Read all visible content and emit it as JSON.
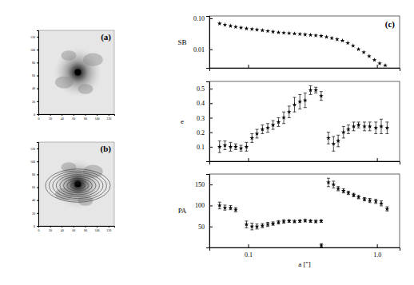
{
  "chart_data": [
    {
      "type": "image",
      "title": "(a)",
      "xlim": [
        0,
        130
      ],
      "ylim": [
        0,
        130
      ],
      "xticks": [
        0,
        20,
        40,
        60,
        80,
        100,
        120
      ],
      "yticks": [
        0,
        20,
        40,
        60,
        80,
        100,
        120
      ]
    },
    {
      "type": "image",
      "title": "(b)",
      "xlim": [
        0,
        130
      ],
      "ylim": [
        0,
        130
      ],
      "xticks": [
        0,
        20,
        40,
        60,
        80,
        100,
        120
      ],
      "yticks": [
        0,
        20,
        40,
        60,
        80,
        100,
        120
      ]
    },
    {
      "type": "scatter",
      "title": "(c)",
      "ylabel": "SB",
      "log": true,
      "marker": "star",
      "tick_labels": "y",
      "x": [
        0.06,
        0.066,
        0.073,
        0.08,
        0.088,
        0.097,
        0.107,
        0.117,
        0.129,
        0.142,
        0.156,
        0.172,
        0.189,
        0.208,
        0.229,
        0.252,
        0.277,
        0.305,
        0.335,
        0.369,
        0.406,
        0.446,
        0.491,
        0.54,
        0.594,
        0.653,
        0.719,
        0.79,
        0.87,
        0.957,
        1.05,
        1.16
      ],
      "values": [
        0.068,
        0.062,
        0.057,
        0.053,
        0.05,
        0.047,
        0.045,
        0.043,
        0.041,
        0.039,
        0.037,
        0.035,
        0.034,
        0.033,
        0.032,
        0.031,
        0.03,
        0.029,
        0.028,
        0.027,
        0.025,
        0.023,
        0.021,
        0.019,
        0.016,
        0.013,
        0.01,
        0.008,
        0.006,
        0.0045,
        0.0035,
        0.003
      ],
      "xlim": [
        0.05,
        1.5
      ],
      "ylim": [
        0.0025,
        0.12
      ],
      "xticks": [
        0.1,
        {
          "value": 1,
          "label": "1.0"
        }
      ],
      "yticks": [
        {
          "value": 0.01,
          "label": "0.01"
        },
        {
          "value": 0.1,
          "label": "0.10"
        }
      ]
    },
    {
      "type": "scatter",
      "ylabel": "e",
      "log": "x",
      "marker": "star",
      "tick_labels": "y",
      "x": [
        0.06,
        0.066,
        0.073,
        0.08,
        0.088,
        0.097,
        0.107,
        0.117,
        0.129,
        0.142,
        0.156,
        0.172,
        0.189,
        0.208,
        0.229,
        0.252,
        0.277,
        0.305,
        0.335,
        0.369,
        0.42,
        0.46,
        0.5,
        0.55,
        0.6,
        0.66,
        0.72,
        0.8,
        0.88,
        0.98,
        1.08,
        1.2
      ],
      "values": [
        0.1,
        0.11,
        0.1,
        0.1,
        0.09,
        0.1,
        0.16,
        0.19,
        0.22,
        0.23,
        0.25,
        0.27,
        0.3,
        0.34,
        0.39,
        0.41,
        0.42,
        0.49,
        0.49,
        0.45,
        0.16,
        0.12,
        0.14,
        0.2,
        0.22,
        0.24,
        0.25,
        0.24,
        0.24,
        0.23,
        0.24,
        0.23
      ],
      "errors": [
        0.04,
        0.03,
        0.03,
        0.02,
        0.02,
        0.03,
        0.03,
        0.03,
        0.03,
        0.03,
        0.03,
        0.03,
        0.04,
        0.04,
        0.05,
        0.05,
        0.05,
        0.03,
        0.02,
        0.03,
        0.04,
        0.05,
        0.04,
        0.04,
        0.03,
        0.03,
        0.02,
        0.03,
        0.03,
        0.04,
        0.05,
        0.04
      ],
      "xlim": [
        0.05,
        1.5
      ],
      "ylim": [
        0,
        0.55
      ],
      "xticks": [
        0.1,
        {
          "value": 1,
          "label": "1.0"
        }
      ],
      "yticks": [
        0.1,
        0.2,
        0.3,
        0.4,
        0.5
      ]
    },
    {
      "type": "scatter",
      "ylabel": "PA",
      "xlabel": "a ['']",
      "log": "x",
      "marker": "star",
      "x": [
        0.06,
        0.066,
        0.073,
        0.08,
        0.097,
        0.107,
        0.117,
        0.129,
        0.142,
        0.156,
        0.172,
        0.189,
        0.208,
        0.229,
        0.252,
        0.277,
        0.305,
        0.335,
        0.369,
        0.37,
        0.42,
        0.46,
        0.5,
        0.55,
        0.6,
        0.66,
        0.72,
        0.8,
        0.88,
        0.98,
        1.08,
        1.2
      ],
      "values": [
        100,
        95,
        95,
        90,
        55,
        50,
        50,
        52,
        55,
        57,
        60,
        62,
        63,
        62,
        63,
        64,
        63,
        62,
        63,
        5,
        155,
        150,
        140,
        135,
        130,
        125,
        120,
        115,
        112,
        110,
        105,
        92
      ],
      "errors": [
        8,
        6,
        5,
        5,
        8,
        8,
        6,
        5,
        5,
        4,
        4,
        4,
        3,
        3,
        3,
        3,
        3,
        3,
        3,
        4,
        10,
        8,
        5,
        5,
        4,
        4,
        4,
        4,
        5,
        5,
        6,
        5
      ],
      "xlim": [
        0.05,
        1.5
      ],
      "ylim": [
        0,
        175
      ],
      "xticks": [
        0.1,
        {
          "value": 1,
          "label": "1.0"
        }
      ],
      "yticks": [
        50,
        100,
        150
      ]
    }
  ]
}
